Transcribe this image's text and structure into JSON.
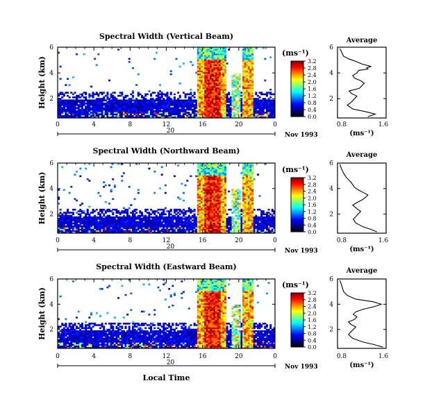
{
  "figure": {
    "xlabel": "Local Time",
    "colorbar_unit": "(ms⁻¹)",
    "colorbar_ticks": [
      "0.0",
      "0.4",
      "0.8",
      "1.2",
      "1.6",
      "2.0",
      "2.4",
      "2.8",
      "3.2"
    ],
    "colorbar_range": [
      0,
      3.2
    ],
    "colormap": [
      "#000000",
      "#00007f",
      "#0000ff",
      "#007fff",
      "#00ffff",
      "#7fff7f",
      "#ffff00",
      "#ff7f00",
      "#ff0000",
      "#7f0000"
    ]
  },
  "chart_data": [
    {
      "type": "heatmap",
      "title": "Spectral Width (Vertical Beam)",
      "ylabel": "Height (km)",
      "xlim": [
        0,
        24
      ],
      "ylim": [
        0.5,
        6
      ],
      "xticks": [
        "0",
        "4",
        "8",
        "12",
        "16",
        "20",
        "0"
      ],
      "yticks": [
        "2",
        "4",
        "6"
      ],
      "date_marker": "20",
      "date_label": "Nov 1993"
    },
    {
      "type": "line",
      "title": "Average",
      "xlabel": "(ms⁻¹)",
      "xlim": [
        0.8,
        1.6
      ],
      "xticks": [
        "0.8",
        "1.6"
      ],
      "ylim": [
        0.5,
        6
      ],
      "yticks": [
        "2",
        "4",
        "6"
      ],
      "x": [
        1.3,
        1.42,
        1.25,
        1.05,
        0.96,
        1.02,
        1.08,
        1.12,
        1.03,
        0.99,
        1.16,
        1.2,
        1.24,
        1.18,
        1.08,
        1.05,
        1.12,
        1.15,
        1.3,
        1.28,
        1.35,
        1.2,
        1.1,
        0.98,
        0.9,
        0.88,
        0.86,
        0.84
      ],
      "y": [
        0.6,
        0.8,
        1.0,
        1.2,
        1.5,
        1.7,
        2.0,
        2.2,
        2.4,
        2.6,
        2.8,
        3.0,
        3.2,
        3.4,
        3.6,
        3.8,
        4.0,
        4.2,
        4.3,
        4.4,
        4.5,
        4.7,
        4.9,
        5.1,
        5.3,
        5.5,
        5.7,
        5.9
      ]
    },
    {
      "type": "heatmap",
      "title": "Spectral Width (Northward Beam)",
      "ylabel": "Height (km)",
      "xlim": [
        0,
        24
      ],
      "ylim": [
        0.5,
        6
      ],
      "xticks": [
        "0",
        "4",
        "8",
        "12",
        "16",
        "20",
        "0"
      ],
      "yticks": [
        "2",
        "4",
        "6"
      ],
      "date_marker": "20",
      "date_label": "Nov 1993"
    },
    {
      "type": "line",
      "title": "Average",
      "xlabel": "(ms⁻¹)",
      "xlim": [
        0.8,
        1.6
      ],
      "xticks": [
        "0.8",
        "1.6"
      ],
      "ylim": [
        0.5,
        6
      ],
      "yticks": [
        "2",
        "4",
        "6"
      ],
      "x": [
        1.45,
        1.35,
        1.22,
        1.1,
        1.06,
        1.12,
        1.18,
        1.1,
        1.05,
        1.12,
        1.2,
        1.26,
        1.3,
        1.22,
        1.14,
        1.08,
        1.05,
        1.02,
        0.98,
        0.94,
        0.9,
        0.88,
        0.86,
        0.84
      ],
      "y": [
        0.6,
        0.8,
        1.0,
        1.3,
        1.6,
        1.9,
        2.2,
        2.5,
        2.7,
        2.9,
        3.1,
        3.3,
        3.5,
        3.7,
        3.9,
        4.1,
        4.3,
        4.5,
        4.7,
        4.9,
        5.2,
        5.4,
        5.6,
        5.9
      ]
    },
    {
      "type": "heatmap",
      "title": "Spectral Width (Eastward Beam)",
      "ylabel": "Height (km)",
      "xlim": [
        0,
        24
      ],
      "ylim": [
        0.5,
        6
      ],
      "xticks": [
        "0",
        "4",
        "8",
        "12",
        "16",
        "20",
        "0"
      ],
      "yticks": [
        "2",
        "4",
        "6"
      ],
      "date_marker": "20",
      "date_label": "Nov 1993"
    },
    {
      "type": "line",
      "title": "Average",
      "xlabel": "(ms⁻¹)",
      "xlim": [
        0.8,
        1.6
      ],
      "xticks": [
        "0.8",
        "1.6"
      ],
      "ylim": [
        0.5,
        6
      ],
      "yticks": [
        "2",
        "4",
        "6"
      ],
      "x": [
        1.55,
        1.4,
        1.22,
        1.05,
        0.98,
        1.04,
        1.1,
        1.02,
        0.98,
        1.08,
        1.12,
        1.06,
        1.1,
        1.22,
        1.4,
        1.52,
        1.38,
        1.1,
        0.96,
        0.9,
        0.88,
        0.86,
        0.84
      ],
      "y": [
        0.6,
        0.8,
        1.0,
        1.3,
        1.6,
        1.9,
        2.2,
        2.4,
        2.6,
        2.8,
        3.0,
        3.2,
        3.4,
        3.6,
        3.8,
        4.0,
        4.2,
        4.4,
        4.7,
        5.0,
        5.3,
        5.6,
        5.9
      ]
    }
  ]
}
